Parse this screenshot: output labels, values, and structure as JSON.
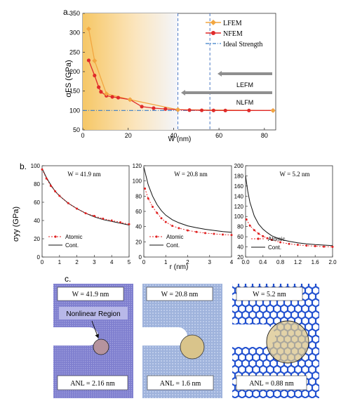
{
  "panel_labels": {
    "a": "a.",
    "b": "b.",
    "c": "c."
  },
  "panel_a": {
    "ylabel": "σFS (GPa)",
    "xlabel": "W (nm)",
    "legend": [
      "LFEM",
      "NFEM",
      "Ideal Strength"
    ],
    "arrows": {
      "lefm": "LEFM",
      "nlfm": "NLFM"
    }
  },
  "panel_b": {
    "ylabel": "σyy (GPa)",
    "xlabel": "r (nm)",
    "subplots": [
      {
        "title": "W = 41.9 nm",
        "legend": [
          "Atomic",
          "Cont."
        ]
      },
      {
        "title": "W = 20.8 nm",
        "legend": [
          "Atomic",
          "Cont."
        ]
      },
      {
        "title": "W = 5.2 nm",
        "legend": [
          "Atomic",
          "Cont."
        ]
      }
    ]
  },
  "panel_c": {
    "tiles": [
      {
        "width_label": "W = 41.9 nm",
        "anl_label": "ANL = 2.16 nm",
        "region_label": "Nonlinear Region",
        "color": "#7f7fcf"
      },
      {
        "width_label": "W = 20.8 nm",
        "anl_label": "ANL = 1.6 nm",
        "color": "#9fb3dc"
      },
      {
        "width_label": "W = 5.2 nm",
        "anl_label": "ANL = 0.88 nm",
        "color": "#1f4fcf"
      }
    ]
  },
  "colors": {
    "lfem": "#f2a640",
    "nfem": "#e02a2a",
    "ideal": "#3a7fc8",
    "atomic": "#e02020",
    "cont": "#111111",
    "highlight": "#f6c766",
    "circle": "#d9c48b"
  },
  "chart_data": [
    {
      "type": "line",
      "title": "",
      "xlabel": "W (nm)",
      "ylabel": "σFS (GPa)",
      "xlim": [
        0,
        85
      ],
      "ylim": [
        50,
        350
      ],
      "xticks": [
        0,
        20,
        40,
        60,
        80
      ],
      "yticks": [
        50,
        100,
        150,
        200,
        250,
        300,
        350
      ],
      "vlines": [
        41.9,
        56
      ],
      "series": [
        {
          "name": "LFEM",
          "x": [
            2.6,
            5.2,
            10.4,
            20.8,
            41.9,
            83.8
          ],
          "y": [
            310,
            228,
            143,
            128,
            102,
            100
          ]
        },
        {
          "name": "NFEM",
          "x": [
            2.6,
            5.2,
            7,
            8,
            10.4,
            13,
            15.6,
            20.8,
            26,
            31.2,
            36.4,
            41.9,
            47,
            52.4,
            57.6,
            62.8,
            73.2,
            83.8
          ],
          "y": [
            229,
            190,
            160,
            148,
            138,
            135,
            133,
            128,
            110,
            106,
            104,
            102,
            101,
            100.5,
            100.2,
            100,
            100,
            100
          ]
        },
        {
          "name": "Ideal Strength",
          "x": [
            0,
            85
          ],
          "y": [
            100,
            100
          ]
        }
      ]
    },
    {
      "type": "line",
      "title": "W = 41.9 nm",
      "xlabel": "r (nm)",
      "ylabel": "σyy (GPa)",
      "xlim": [
        0,
        5
      ],
      "ylim": [
        0,
        100
      ],
      "xticks": [
        0,
        1,
        2,
        3,
        4,
        5
      ],
      "yticks": [
        0,
        20,
        40,
        60,
        80,
        100
      ],
      "series": [
        {
          "name": "Atomic",
          "x": [
            0,
            0.25,
            0.5,
            0.75,
            1,
            1.5,
            2,
            2.5,
            3,
            3.5,
            4,
            4.5,
            5
          ],
          "y": [
            96,
            86,
            78,
            72,
            67,
            59,
            53,
            48,
            45,
            42,
            40,
            38,
            36
          ]
        },
        {
          "name": "Cont.",
          "x": [
            0,
            0.25,
            0.5,
            0.75,
            1,
            1.5,
            2,
            2.5,
            3,
            3.5,
            4,
            4.5,
            5
          ],
          "y": [
            97,
            87,
            79,
            72,
            67,
            59,
            53,
            48,
            44,
            41,
            39,
            37,
            35
          ]
        }
      ]
    },
    {
      "type": "line",
      "title": "W = 20.8 nm",
      "xlabel": "r (nm)",
      "ylabel": "σyy (GPa)",
      "xlim": [
        0,
        4
      ],
      "ylim": [
        0,
        120
      ],
      "xticks": [
        0,
        1,
        2,
        3,
        4
      ],
      "yticks": [
        0,
        20,
        40,
        60,
        80,
        100,
        120
      ],
      "series": [
        {
          "name": "Atomic",
          "x": [
            0.05,
            0.2,
            0.4,
            0.6,
            0.8,
            1,
            1.3,
            1.6,
            2,
            2.4,
            2.8,
            3.2,
            3.6,
            4
          ],
          "y": [
            90,
            77,
            66,
            58,
            51,
            46,
            41,
            38,
            35,
            33,
            31.5,
            30.5,
            29.5,
            29
          ]
        },
        {
          "name": "Cont.",
          "x": [
            0,
            0.2,
            0.4,
            0.6,
            0.8,
            1,
            1.3,
            1.6,
            2,
            2.4,
            2.8,
            3.2,
            3.6,
            4
          ],
          "y": [
            118,
            95,
            80,
            69,
            61,
            55,
            49,
            45,
            41,
            38.5,
            36.5,
            35,
            33.5,
            32.5
          ]
        }
      ]
    },
    {
      "type": "line",
      "title": "W = 5.2 nm",
      "xlabel": "r (nm)",
      "ylabel": "σyy (GPa)",
      "xlim": [
        0,
        2
      ],
      "ylim": [
        20,
        200
      ],
      "xticks": [
        0,
        0.4,
        0.8,
        1.2,
        1.6,
        2.0
      ],
      "yticks": [
        20,
        40,
        60,
        80,
        100,
        120,
        140,
        160,
        180,
        200
      ],
      "series": [
        {
          "name": "Atomic",
          "x": [
            0.02,
            0.1,
            0.2,
            0.3,
            0.4,
            0.5,
            0.6,
            0.8,
            1,
            1.2,
            1.4,
            1.6,
            1.8,
            2
          ],
          "y": [
            94,
            82,
            73,
            66,
            61,
            57,
            54,
            49,
            46,
            44,
            42.5,
            41.5,
            40.5,
            40
          ]
        },
        {
          "name": "Cont.",
          "x": [
            0,
            0.05,
            0.1,
            0.2,
            0.3,
            0.4,
            0.5,
            0.6,
            0.8,
            1,
            1.2,
            1.4,
            1.6,
            1.8,
            2
          ],
          "y": [
            180,
            150,
            128,
            101,
            85,
            75,
            68,
            62,
            55,
            51,
            48,
            46,
            44.5,
            43.5,
            42.5
          ]
        }
      ]
    }
  ]
}
